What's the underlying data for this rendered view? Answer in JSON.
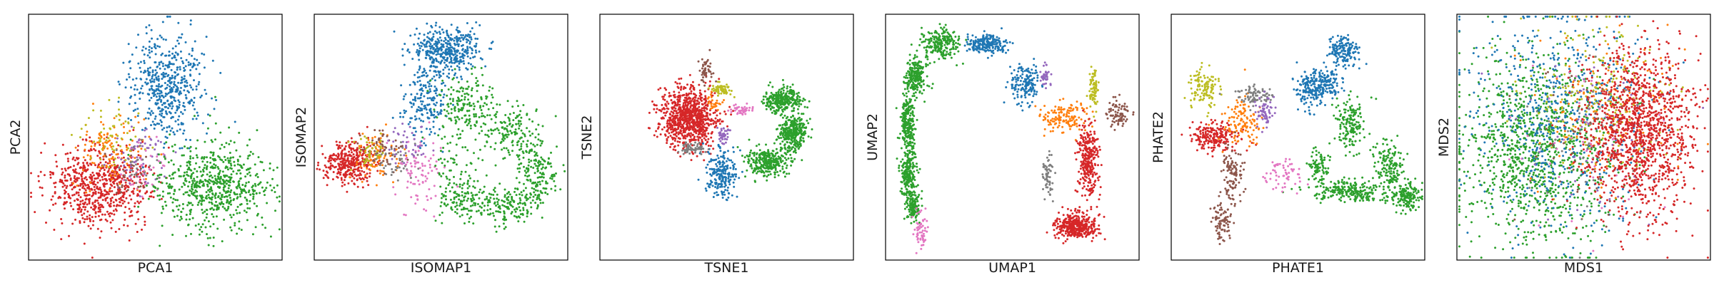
{
  "palette": {
    "blue": "#1f77b4",
    "orange": "#ff7f0e",
    "green": "#2ca02c",
    "red": "#d62728",
    "purple": "#9467bd",
    "brown": "#8c564b",
    "pink": "#e377c2",
    "gray": "#7f7f7f",
    "olive": "#bcbd22"
  },
  "chart_data": [
    {
      "type": "scatter",
      "title": "",
      "xlabel": "PCA1",
      "ylabel": "PCA2",
      "xlim": [
        0,
        100
      ],
      "ylim": [
        0,
        100
      ],
      "xticks": [],
      "yticks": [],
      "grid": false,
      "legend": "none",
      "series": [
        {
          "color": "#d62728",
          "clusters": [
            {
              "cx": 28,
              "cy": 30,
              "sx": 10,
              "sy": 8,
              "n": 700
            }
          ]
        },
        {
          "color": "#ff7f0e",
          "clusters": [
            {
              "cx": 33,
              "cy": 45,
              "sx": 8,
              "sy": 7,
              "n": 120
            }
          ]
        },
        {
          "color": "#bcbd22",
          "clusters": [
            {
              "cx": 35,
              "cy": 50,
              "sx": 7,
              "sy": 6,
              "n": 60
            }
          ]
        },
        {
          "color": "#9467bd",
          "clusters": [
            {
              "cx": 45,
              "cy": 42,
              "sx": 6,
              "sy": 6,
              "n": 60
            }
          ]
        },
        {
          "color": "#e377c2",
          "clusters": [
            {
              "cx": 47,
              "cy": 38,
              "sx": 5,
              "sy": 5,
              "n": 40
            }
          ]
        },
        {
          "color": "#7f7f7f",
          "clusters": [
            {
              "cx": 42,
              "cy": 40,
              "sx": 5,
              "sy": 5,
              "n": 30
            }
          ]
        },
        {
          "color": "#8c564b",
          "clusters": [
            {
              "cx": 40,
              "cy": 35,
              "sx": 5,
              "sy": 5,
              "n": 20
            }
          ]
        },
        {
          "color": "#1f77b4",
          "clusters": [
            {
              "cx": 55,
              "cy": 70,
              "sx": 7,
              "sy": 11,
              "n": 500
            }
          ]
        },
        {
          "color": "#2ca02c",
          "clusters": [
            {
              "cx": 73,
              "cy": 30,
              "sx": 11,
              "sy": 9,
              "n": 650
            }
          ]
        }
      ]
    },
    {
      "type": "scatter",
      "title": "",
      "xlabel": "ISOMAP1",
      "ylabel": "ISOMAP2",
      "xlim": [
        0,
        100
      ],
      "ylim": [
        0,
        100
      ],
      "xticks": [],
      "yticks": [],
      "grid": false,
      "legend": "none",
      "series": [
        {
          "color": "#d62728",
          "clusters": [
            {
              "cx": 14,
              "cy": 40,
              "sx": 5,
              "sy": 4,
              "n": 350
            }
          ]
        },
        {
          "color": "#ff7f0e",
          "clusters": [
            {
              "cx": 25,
              "cy": 42,
              "sx": 5,
              "sy": 5,
              "n": 90
            }
          ]
        },
        {
          "color": "#8c564b",
          "clusters": [
            {
              "cx": 27,
              "cy": 45,
              "sx": 4,
              "sy": 4,
              "n": 60
            }
          ]
        },
        {
          "color": "#bcbd22",
          "clusters": [
            {
              "cx": 22,
              "cy": 44,
              "sx": 4,
              "sy": 4,
              "n": 40
            }
          ]
        },
        {
          "color": "#7f7f7f",
          "clusters": [
            {
              "cx": 33,
              "cy": 40,
              "sx": 4,
              "sy": 4,
              "n": 40
            }
          ]
        },
        {
          "color": "#e377c2",
          "clusters": [
            {
              "cx": 40,
              "cy": 36,
              "sx": 5,
              "sy": 8,
              "n": 90
            }
          ]
        },
        {
          "color": "#9467bd",
          "clusters": [
            {
              "cx": 37,
              "cy": 48,
              "sx": 4,
              "sy": 4,
              "n": 40
            }
          ]
        },
        {
          "color": "#1f77b4",
          "clusters": [
            {
              "cx": 52,
              "cy": 85,
              "sx": 7,
              "sy": 5,
              "n": 400
            },
            {
              "cx": 44,
              "cy": 63,
              "sx": 4,
              "sy": 7,
              "n": 180
            }
          ]
        },
        {
          "color": "#2ca02c",
          "clusters": [
            {
              "cx": 60,
              "cy": 64,
              "sx": 6,
              "sy": 5,
              "n": 160
            },
            {
              "cx": 78,
              "cy": 52,
              "sx": 6,
              "sy": 5,
              "n": 160
            },
            {
              "cx": 88,
              "cy": 35,
              "sx": 4,
              "sy": 6,
              "n": 160
            },
            {
              "cx": 75,
              "cy": 22,
              "sx": 6,
              "sy": 4,
              "n": 160
            },
            {
              "cx": 58,
              "cy": 25,
              "sx": 5,
              "sy": 4,
              "n": 130
            },
            {
              "cx": 55,
              "cy": 45,
              "sx": 5,
              "sy": 8,
              "n": 60
            }
          ]
        }
      ]
    },
    {
      "type": "scatter",
      "title": "",
      "xlabel": "TSNE1",
      "ylabel": "TSNE2",
      "xlim": [
        0,
        100
      ],
      "ylim": [
        0,
        100
      ],
      "xticks": [],
      "yticks": [],
      "grid": false,
      "legend": "none",
      "series": [
        {
          "color": "#d62728",
          "clusters": [
            {
              "cx": 35,
              "cy": 58,
              "sx": 5.5,
              "sy": 6,
              "n": 900
            }
          ]
        },
        {
          "color": "#2ca02c",
          "clusters": [
            {
              "cx": 72,
              "cy": 65,
              "sx": 3.5,
              "sy": 2.5,
              "n": 300
            },
            {
              "cx": 76,
              "cy": 52,
              "sx": 2.5,
              "sy": 3.5,
              "n": 300
            },
            {
              "cx": 66,
              "cy": 40,
              "sx": 4,
              "sy": 3,
              "n": 300
            }
          ]
        },
        {
          "color": "#1f77b4",
          "clusters": [
            {
              "cx": 48,
              "cy": 35,
              "sx": 3,
              "sy": 5,
              "n": 220
            }
          ]
        },
        {
          "color": "#7f7f7f",
          "clusters": [
            {
              "cx": 37,
              "cy": 46,
              "sx": 2.5,
              "sy": 1.2,
              "n": 60
            }
          ]
        },
        {
          "color": "#8c564b",
          "clusters": [
            {
              "cx": 42,
              "cy": 78,
              "sx": 1.2,
              "sy": 2.5,
              "n": 50
            }
          ]
        },
        {
          "color": "#bcbd22",
          "clusters": [
            {
              "cx": 48,
              "cy": 69,
              "sx": 2.2,
              "sy": 1.5,
              "n": 60
            }
          ]
        },
        {
          "color": "#e377c2",
          "clusters": [
            {
              "cx": 56,
              "cy": 61,
              "sx": 2,
              "sy": 1.2,
              "n": 40
            }
          ]
        },
        {
          "color": "#9467bd",
          "clusters": [
            {
              "cx": 49,
              "cy": 51,
              "sx": 1.2,
              "sy": 2,
              "n": 40
            }
          ]
        },
        {
          "color": "#ff7f0e",
          "clusters": [
            {
              "cx": 45,
              "cy": 64,
              "sx": 1.5,
              "sy": 1.5,
              "n": 30
            }
          ]
        }
      ]
    },
    {
      "type": "scatter",
      "title": "",
      "xlabel": "UMAP1",
      "ylabel": "UMAP2",
      "xlim": [
        0,
        100
      ],
      "ylim": [
        0,
        100
      ],
      "xticks": [],
      "yticks": [],
      "grid": false,
      "legend": "none",
      "series": [
        {
          "color": "#2ca02c",
          "clusters": [
            {
              "cx": 22,
              "cy": 88,
              "sx": 4,
              "sy": 3,
              "n": 220
            },
            {
              "cx": 12,
              "cy": 75,
              "sx": 2,
              "sy": 4,
              "n": 220
            },
            {
              "cx": 9,
              "cy": 55,
              "sx": 1.5,
              "sy": 5,
              "n": 220
            },
            {
              "cx": 9,
              "cy": 35,
              "sx": 1.5,
              "sy": 5,
              "n": 220
            },
            {
              "cx": 11,
              "cy": 22,
              "sx": 1.5,
              "sy": 3,
              "n": 120
            }
          ]
        },
        {
          "color": "#e377c2",
          "clusters": [
            {
              "cx": 14,
              "cy": 12,
              "sx": 1.5,
              "sy": 4,
              "n": 60
            }
          ]
        },
        {
          "color": "#1f77b4",
          "clusters": [
            {
              "cx": 40,
              "cy": 88,
              "sx": 4,
              "sy": 2,
              "n": 200
            },
            {
              "cx": 55,
              "cy": 72,
              "sx": 3,
              "sy": 4,
              "n": 160
            }
          ]
        },
        {
          "color": "#9467bd",
          "clusters": [
            {
              "cx": 63,
              "cy": 75,
              "sx": 1,
              "sy": 2.5,
              "n": 40
            }
          ]
        },
        {
          "color": "#ff7f0e",
          "clusters": [
            {
              "cx": 70,
              "cy": 58,
              "sx": 5,
              "sy": 3,
              "n": 140
            }
          ]
        },
        {
          "color": "#bcbd22",
          "clusters": [
            {
              "cx": 82,
              "cy": 70,
              "sx": 0.8,
              "sy": 4,
              "n": 80
            }
          ]
        },
        {
          "color": "#8c564b",
          "clusters": [
            {
              "cx": 92,
              "cy": 60,
              "sx": 2,
              "sy": 3,
              "n": 80
            }
          ]
        },
        {
          "color": "#7f7f7f",
          "clusters": [
            {
              "cx": 64,
              "cy": 34,
              "sx": 1,
              "sy": 5,
              "n": 60
            }
          ]
        },
        {
          "color": "#d62728",
          "clusters": [
            {
              "cx": 80,
              "cy": 40,
              "sx": 2,
              "sy": 8,
              "n": 300
            },
            {
              "cx": 75,
              "cy": 14,
              "sx": 4,
              "sy": 2.5,
              "n": 400
            }
          ]
        }
      ]
    },
    {
      "type": "scatter",
      "title": "",
      "xlabel": "PHATE1",
      "ylabel": "PHATE2",
      "xlim": [
        0,
        100
      ],
      "ylim": [
        0,
        100
      ],
      "xticks": [],
      "yticks": [],
      "grid": false,
      "legend": "none",
      "series": [
        {
          "color": "#1f77b4",
          "clusters": [
            {
              "cx": 55,
              "cy": 70,
              "sx": 3,
              "sy": 4,
              "n": 160
            },
            {
              "cx": 68,
              "cy": 85,
              "sx": 3,
              "sy": 3,
              "n": 160
            },
            {
              "cx": 62,
              "cy": 72,
              "sx": 3,
              "sy": 3,
              "n": 120
            }
          ]
        },
        {
          "color": "#2ca02c",
          "clusters": [
            {
              "cx": 70,
              "cy": 55,
              "sx": 3,
              "sy": 5,
              "n": 160
            },
            {
              "cx": 86,
              "cy": 38,
              "sx": 3,
              "sy": 5,
              "n": 160
            },
            {
              "cx": 93,
              "cy": 26,
              "sx": 3,
              "sy": 3,
              "n": 160
            },
            {
              "cx": 70,
              "cy": 28,
              "sx": 7,
              "sy": 2,
              "n": 220
            },
            {
              "cx": 58,
              "cy": 38,
              "sx": 2,
              "sy": 4,
              "n": 80
            }
          ]
        },
        {
          "color": "#bcbd22",
          "clusters": [
            {
              "cx": 13,
              "cy": 70,
              "sx": 3,
              "sy": 4,
              "n": 120
            }
          ]
        },
        {
          "color": "#d62728",
          "clusters": [
            {
              "cx": 17,
              "cy": 50,
              "sx": 5,
              "sy": 3,
              "n": 220
            }
          ]
        },
        {
          "color": "#ff7f0e",
          "clusters": [
            {
              "cx": 28,
              "cy": 57,
              "sx": 4,
              "sy": 5,
              "n": 120
            }
          ]
        },
        {
          "color": "#7f7f7f",
          "clusters": [
            {
              "cx": 34,
              "cy": 67,
              "sx": 4,
              "sy": 2,
              "n": 80
            }
          ]
        },
        {
          "color": "#9467bd",
          "clusters": [
            {
              "cx": 37,
              "cy": 60,
              "sx": 2,
              "sy": 3,
              "n": 60
            }
          ]
        },
        {
          "color": "#8c564b",
          "clusters": [
            {
              "cx": 24,
              "cy": 35,
              "sx": 2,
              "sy": 6,
              "n": 110
            },
            {
              "cx": 20,
              "cy": 15,
              "sx": 2,
              "sy": 4,
              "n": 80
            }
          ]
        },
        {
          "color": "#e377c2",
          "clusters": [
            {
              "cx": 44,
              "cy": 35,
              "sx": 4,
              "sy": 3,
              "n": 60
            }
          ]
        }
      ]
    },
    {
      "type": "scatter",
      "title": "",
      "xlabel": "MDS1",
      "ylabel": "MDS2",
      "xlim": [
        0,
        100
      ],
      "ylim": [
        0,
        100
      ],
      "xticks": [],
      "yticks": [],
      "grid": false,
      "legend": "none",
      "series": [
        {
          "color": "#2ca02c",
          "clusters": [
            {
              "cx": 30,
              "cy": 45,
              "sx": 15,
              "sy": 19,
              "n": 1100
            }
          ]
        },
        {
          "color": "#1f77b4",
          "clusters": [
            {
              "cx": 40,
              "cy": 58,
              "sx": 18,
              "sy": 22,
              "n": 600
            }
          ]
        },
        {
          "color": "#bcbd22",
          "clusters": [
            {
              "cx": 55,
              "cy": 65,
              "sx": 14,
              "sy": 16,
              "n": 220
            }
          ]
        },
        {
          "color": "#ff7f0e",
          "clusters": [
            {
              "cx": 60,
              "cy": 58,
              "sx": 14,
              "sy": 16,
              "n": 160
            }
          ]
        },
        {
          "color": "#9467bd",
          "clusters": [
            {
              "cx": 55,
              "cy": 50,
              "sx": 14,
              "sy": 16,
              "n": 60
            }
          ]
        },
        {
          "color": "#7f7f7f",
          "clusters": [
            {
              "cx": 52,
              "cy": 55,
              "sx": 14,
              "sy": 16,
              "n": 50
            }
          ]
        },
        {
          "color": "#8c564b",
          "clusters": [
            {
              "cx": 52,
              "cy": 50,
              "sx": 14,
              "sy": 16,
              "n": 50
            }
          ]
        },
        {
          "color": "#e377c2",
          "clusters": [
            {
              "cx": 50,
              "cy": 45,
              "sx": 14,
              "sy": 16,
              "n": 50
            }
          ]
        },
        {
          "color": "#d62728",
          "clusters": [
            {
              "cx": 72,
              "cy": 52,
              "sx": 11,
              "sy": 17,
              "n": 1300
            }
          ]
        }
      ]
    }
  ]
}
